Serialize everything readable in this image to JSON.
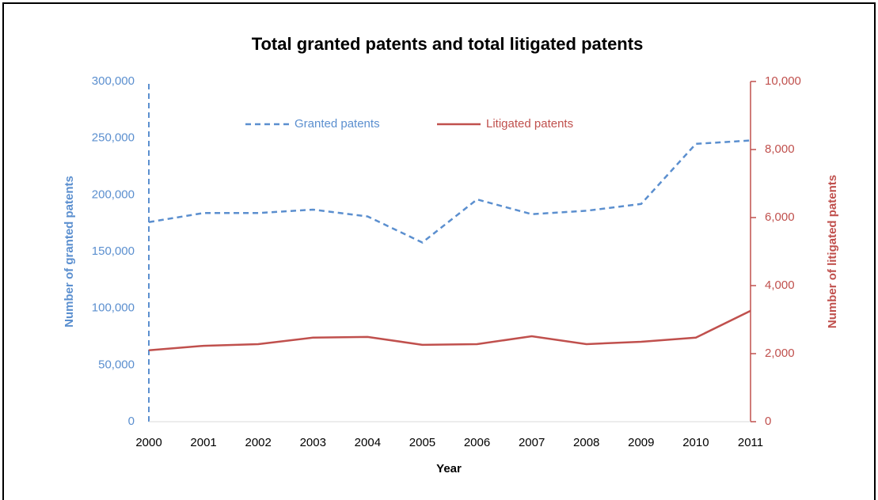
{
  "chart_data": {
    "type": "line",
    "title": "Total granted patents and total litigated patents",
    "x_label": "Year",
    "y_label": "Number of  granted patents",
    "y2_label": "Number of litigated patents",
    "categories": [
      "2000",
      "2001",
      "2002",
      "2003",
      "2004",
      "2005",
      "2006",
      "2007",
      "2008",
      "2009",
      "2010",
      "2011"
    ],
    "series": [
      {
        "name": "Granted patents",
        "color": "#5b8fcf",
        "dash": true,
        "axis": "y",
        "values": [
          176000,
          184000,
          184000,
          187000,
          181000,
          158000,
          196000,
          183000,
          186000,
          192000,
          245000,
          248000
        ]
      },
      {
        "name": "Litigated patents",
        "color": "#c0504d",
        "dash": false,
        "axis": "y2",
        "values": [
          2100,
          2230,
          2280,
          2470,
          2490,
          2260,
          2280,
          2510,
          2280,
          2350,
          2470,
          3260
        ]
      }
    ],
    "ylim": [
      0,
      300000
    ],
    "yticks": [
      0,
      {
        "value": 50000,
        "label": "50,000"
      },
      {
        "value": 100000,
        "label": "100,000"
      },
      {
        "value": 150000,
        "label": "150,000"
      },
      {
        "value": 200000,
        "label": "200,000"
      },
      {
        "value": 250000,
        "label": "250,000"
      },
      {
        "value": 300000,
        "label": "300,000"
      }
    ],
    "y2lim": [
      0,
      10000
    ],
    "y2ticks": [
      0,
      {
        "value": 2000,
        "label": "2,000"
      },
      {
        "value": 4000,
        "label": "4,000"
      },
      {
        "value": 6000,
        "label": "6,000"
      },
      {
        "value": 8000,
        "label": "8,000"
      },
      {
        "value": 10000,
        "label": "10,000"
      }
    ],
    "legend": "top",
    "grid": false
  }
}
